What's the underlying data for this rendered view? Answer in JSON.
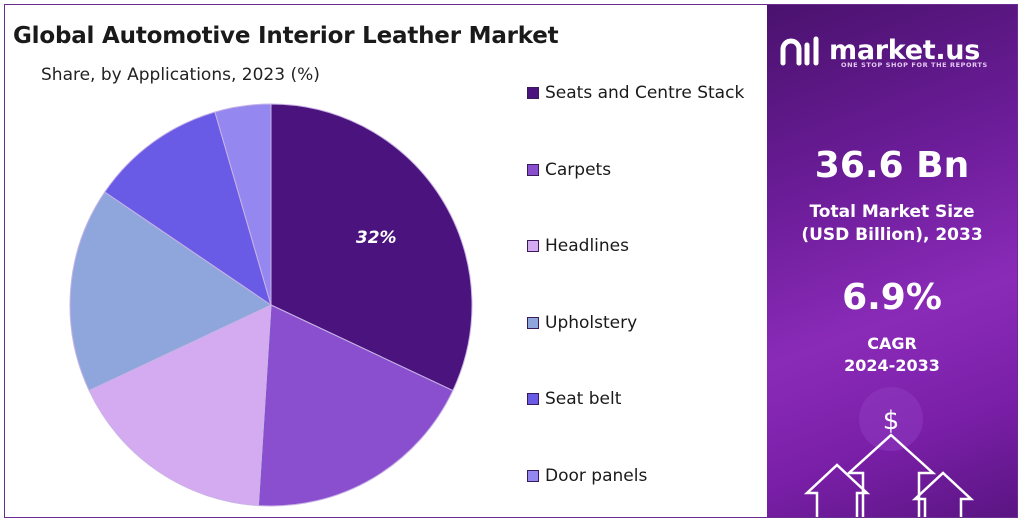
{
  "title": "Global Automotive Interior Leather Market",
  "subtitle": "Share, by Applications, 2023 (%)",
  "chart_data": {
    "type": "pie",
    "title": "Global Automotive Interior Leather Market",
    "subtitle": "Share, by Applications, 2023 (%)",
    "slices": [
      {
        "label": "Seats and Centre Stack",
        "value": 32,
        "color": "#4b137d",
        "data_label": "32%"
      },
      {
        "label": "Carpets",
        "value": 19,
        "color": "#8a4fcf",
        "data_label": ""
      },
      {
        "label": "Headlines",
        "value": 17,
        "color": "#d4aaf0",
        "data_label": ""
      },
      {
        "label": "Upholstery",
        "value": 16.5,
        "color": "#8ea6dc",
        "data_label": ""
      },
      {
        "label": "Seat belt",
        "value": 11,
        "color": "#6a5be6",
        "data_label": ""
      },
      {
        "label": "Door panels",
        "value": 4.5,
        "color": "#9487ef",
        "data_label": ""
      }
    ],
    "legend_position": "right",
    "start_angle": "12 o'clock",
    "direction": "clockwise"
  },
  "sidebar": {
    "brand": "market.us",
    "tagline": "ONE STOP SHOP FOR THE REPORTS",
    "market_size_value": "36.6 Bn",
    "market_size_label_line1": "Total Market Size",
    "market_size_label_line2": "(USD Billion), 2033",
    "cagr_value": "6.9%",
    "cagr_label_line1": "CAGR",
    "cagr_label_line2": "2024-2033",
    "deco_icon_symbol": "$",
    "background_color": "#6d1d9a"
  }
}
